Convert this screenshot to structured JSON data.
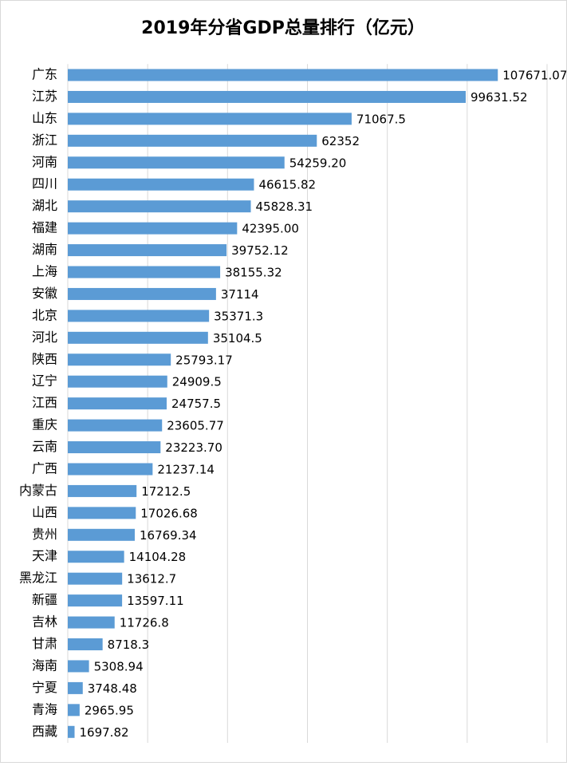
{
  "chart_data": {
    "type": "bar",
    "orientation": "horizontal",
    "title": "2019年分省GDP总量排行（亿元）",
    "categories": [
      "广东",
      "江苏",
      "山东",
      "浙江",
      "河南",
      "四川",
      "湖北",
      "福建",
      "湖南",
      "上海",
      "安徽",
      "北京",
      "河北",
      "陕西",
      "辽宁",
      "江西",
      "重庆",
      "云南",
      "广西",
      "内蒙古",
      "山西",
      "贵州",
      "天津",
      "黑龙江",
      "新疆",
      "吉林",
      "甘肃",
      "海南",
      "宁夏",
      "青海",
      "西藏"
    ],
    "values": [
      107671.07,
      99631.52,
      71067.5,
      62352,
      54259.2,
      46615.82,
      45828.31,
      42395,
      39752.12,
      38155.32,
      37114,
      35371.3,
      35104.5,
      25793.17,
      24909.5,
      24757.5,
      23605.77,
      23223.7,
      21237.14,
      17212.5,
      17026.68,
      16769.34,
      14104.28,
      13612.7,
      13597.11,
      11726.8,
      8718.3,
      5308.94,
      3748.48,
      2965.95,
      1697.82
    ],
    "value_labels": [
      "107671.07",
      "99631.52",
      "71067.5",
      "62352",
      "54259.20",
      "46615.82",
      "45828.31",
      "42395.00",
      "39752.12",
      "38155.32",
      "37114",
      "35371.3",
      "35104.5",
      "25793.17",
      "24909.5",
      "24757.5",
      "23605.77",
      "23223.70",
      "21237.14",
      "17212.5",
      "17026.68",
      "16769.34",
      "14104.28",
      "13612.7",
      "13597.11",
      "11726.8",
      "8718.3",
      "5308.94",
      "3748.48",
      "2965.95",
      "1697.82"
    ],
    "color": "#5b9bd5",
    "xlim": [
      0,
      120000
    ],
    "xticks": [
      0,
      20000,
      40000,
      60000,
      80000,
      100000,
      120000
    ],
    "grid": true
  }
}
